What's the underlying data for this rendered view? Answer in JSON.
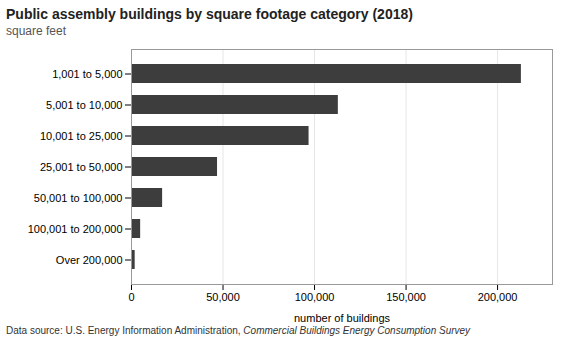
{
  "chart_data": {
    "type": "bar",
    "orientation": "horizontal",
    "title": "Public assembly buildings by square footage category (2018)",
    "subtitle": "square feet",
    "xlabel": "number of buildings",
    "categories": [
      "1,001 to 5,000",
      "5,001 to 10,000",
      "10,001 to 25,000",
      "25,001 to 50,000",
      "50,001 to 100,000",
      "100,001 to 200,000",
      "Over 200,000"
    ],
    "values": [
      213000,
      113000,
      97000,
      47000,
      17000,
      5000,
      2000
    ],
    "color": "#3d3d3d",
    "xlim": [
      0,
      230000
    ],
    "xticks": [
      0,
      {
        "value": 50000,
        "label": "50,000"
      },
      {
        "value": 100000,
        "label": "100,000"
      },
      {
        "value": 150000,
        "label": "150,000"
      },
      {
        "value": 200000,
        "label": "200,000"
      }
    ],
    "grid": true,
    "footnote": "Data source: U.S. Energy Information Administration, ",
    "footnote_italic": "Commercial Buildings Energy Consumption Survey"
  }
}
